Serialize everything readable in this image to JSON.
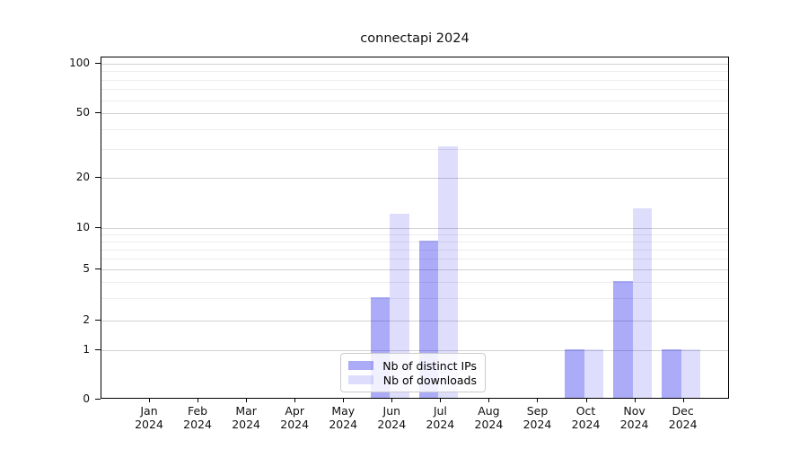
{
  "title": "connectapi 2024",
  "legend": {
    "items": [
      {
        "label": "Nb of distinct IPs",
        "color": "rgba(0,0,230,0.33)"
      },
      {
        "label": "Nb of downloads",
        "color": "rgba(0,0,230,0.13)"
      }
    ]
  },
  "colors": {
    "distinct_ips_bar": "rgba(0,0,230,0.33)",
    "downloads_bar": "rgba(0,0,230,0.13)",
    "major_gridline": "#d2d2d2",
    "minor_gridline": "#ececec",
    "axis": "#000000"
  },
  "chart_data": {
    "type": "bar",
    "title": "connectapi 2024",
    "categories": [
      "Jan",
      "Feb",
      "Mar",
      "Apr",
      "May",
      "Jun",
      "Jul",
      "Aug",
      "Sep",
      "Oct",
      "Nov",
      "Dec"
    ],
    "year_label": "2024",
    "series": [
      {
        "name": "Nb of distinct IPs",
        "values": [
          0,
          0,
          0,
          0,
          0,
          3,
          8,
          0,
          0,
          1,
          4,
          1
        ]
      },
      {
        "name": "Nb of downloads",
        "values": [
          0,
          0,
          0,
          0,
          0,
          12,
          31,
          0,
          0,
          1,
          13,
          1
        ]
      }
    ],
    "xlabel": "",
    "ylabel": "",
    "ylim": [
      0,
      100
    ],
    "y_major_ticks": [
      0,
      1,
      2,
      5,
      10,
      20,
      50,
      100
    ],
    "y_minor_gridlines": [
      3,
      4,
      6,
      7,
      8,
      9,
      30,
      40,
      60,
      70,
      80,
      90
    ],
    "y_scale": "log-like (0 pinned at baseline)",
    "grid": true,
    "legend_position": "lower center"
  }
}
